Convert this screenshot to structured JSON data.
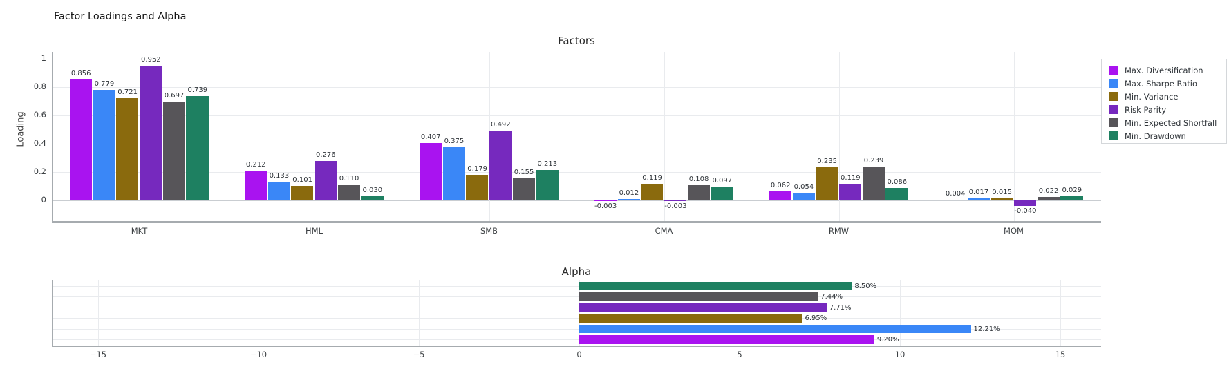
{
  "figure": {
    "title": "Factor Loadings and Alpha"
  },
  "chart_data": [
    {
      "type": "bar",
      "title": "Factors",
      "ylabel": "Loading",
      "categories": [
        "MKT",
        "HML",
        "SMB",
        "CMA",
        "RMW",
        "MOM"
      ],
      "series": [
        {
          "name": "Max. Diversification",
          "color": "#A913F0",
          "values": [
            0.856,
            0.212,
            0.407,
            -0.003,
            0.062,
            0.004
          ]
        },
        {
          "name": "Max. Sharpe Ratio",
          "color": "#3A87F7",
          "values": [
            0.779,
            0.133,
            0.375,
            0.012,
            0.054,
            0.017
          ]
        },
        {
          "name": "Min. Variance",
          "color": "#8A6A0D",
          "values": [
            0.721,
            0.101,
            0.179,
            0.119,
            0.235,
            0.015
          ]
        },
        {
          "name": "Risk Parity",
          "color": "#7629BE",
          "values": [
            0.952,
            0.276,
            0.492,
            -0.003,
            0.119,
            -0.04
          ]
        },
        {
          "name": "Min. Expected Shortfall",
          "color": "#575559",
          "values": [
            0.697,
            0.11,
            0.155,
            0.108,
            0.239,
            0.022
          ]
        },
        {
          "name": "Min. Drawdown",
          "color": "#1E8061",
          "values": [
            0.739,
            0.03,
            0.213,
            0.097,
            0.086,
            0.029
          ]
        }
      ],
      "yticks": [
        {
          "v": 0,
          "t": "0"
        },
        {
          "v": 0.2,
          "t": "0.2"
        },
        {
          "v": 0.4,
          "t": "0.4"
        },
        {
          "v": 0.6,
          "t": "0.6"
        },
        {
          "v": 0.8,
          "t": "0.8"
        },
        {
          "v": 1,
          "t": "1"
        }
      ],
      "ylim": [
        -0.15,
        1.07
      ],
      "grid": true,
      "legend_position": "top-right-outside"
    },
    {
      "type": "bar",
      "orientation": "horizontal",
      "title": "Alpha",
      "rows": [
        {
          "name": "Min. Drawdown",
          "color": "#1E8061",
          "value": 8.5,
          "label": "8.50%"
        },
        {
          "name": "Min. Expected Shortfall",
          "color": "#575559",
          "value": 7.44,
          "label": "7.44%"
        },
        {
          "name": "Risk Parity",
          "color": "#7629BE",
          "value": 7.71,
          "label": "7.71%"
        },
        {
          "name": "Min. Variance",
          "color": "#8A6A0D",
          "value": 6.95,
          "label": "6.95%"
        },
        {
          "name": "Max. Sharpe Ratio",
          "color": "#3A87F7",
          "value": 12.21,
          "label": "12.21%"
        },
        {
          "name": "Max. Diversification",
          "color": "#A913F0",
          "value": 9.2,
          "label": "9.20%"
        }
      ],
      "xticks": [
        {
          "v": -15,
          "t": "−15"
        },
        {
          "v": -10,
          "t": "−10"
        },
        {
          "v": -5,
          "t": "−5"
        },
        {
          "v": 0,
          "t": "0"
        },
        {
          "v": 5,
          "t": "5"
        },
        {
          "v": 10,
          "t": "10"
        },
        {
          "v": 15,
          "t": "15"
        }
      ],
      "xlim": [
        -16.5,
        16.6
      ],
      "grid": true
    }
  ]
}
